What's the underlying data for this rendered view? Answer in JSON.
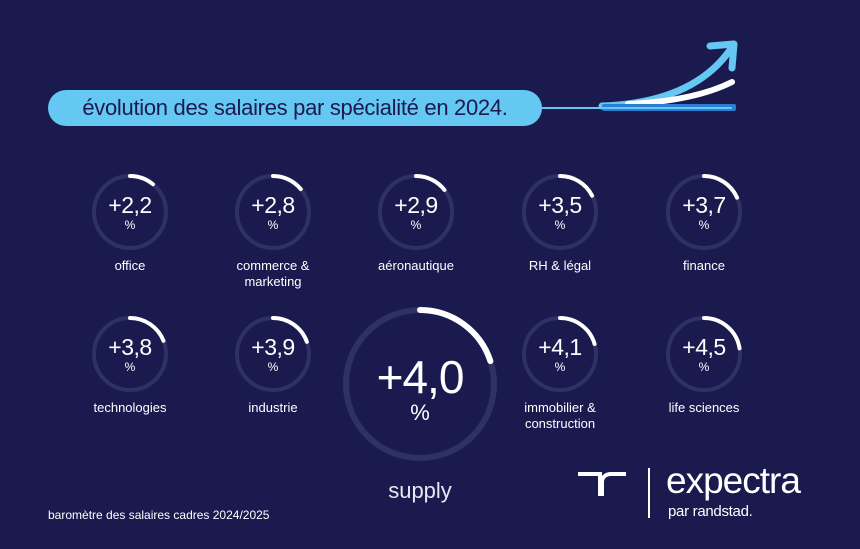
{
  "title": "évolution des salaires par spécialité en 2024.",
  "colors": {
    "background": "#1b1a4f",
    "accent": "#64c8f2",
    "ring": "#2f3165",
    "arc": "#ffffff"
  },
  "gauges": [
    {
      "value": "+2,2",
      "unit": "%",
      "label": "office",
      "percent": 2.2
    },
    {
      "value": "+2,8",
      "unit": "%",
      "label": "commerce & marketing",
      "percent": 2.8
    },
    {
      "value": "+2,9",
      "unit": "%",
      "label": "aéronautique",
      "percent": 2.9
    },
    {
      "value": "+3,5",
      "unit": "%",
      "label": "RH & légal",
      "percent": 3.5
    },
    {
      "value": "+3,7",
      "unit": "%",
      "label": "finance",
      "percent": 3.7
    },
    {
      "value": "+3,8",
      "unit": "%",
      "label": "technologies",
      "percent": 3.8
    },
    {
      "value": "+3,9",
      "unit": "%",
      "label": "industrie",
      "percent": 3.9
    },
    {
      "value": "+4,1",
      "unit": "%",
      "label": "immobilier & construction",
      "percent": 4.1
    },
    {
      "value": "+4,5",
      "unit": "%",
      "label": "life sciences",
      "percent": 4.5
    }
  ],
  "highlight": {
    "value": "+4,0",
    "unit": "%",
    "label": "supply",
    "percent": 4.0
  },
  "footer": "baromètre des salaires cadres 2024/2025",
  "brand": {
    "name": "expectra",
    "tagline": "par randstad."
  },
  "icons": {
    "trend": "growth-arrow-icon",
    "logo": "randstad-logo-icon"
  }
}
